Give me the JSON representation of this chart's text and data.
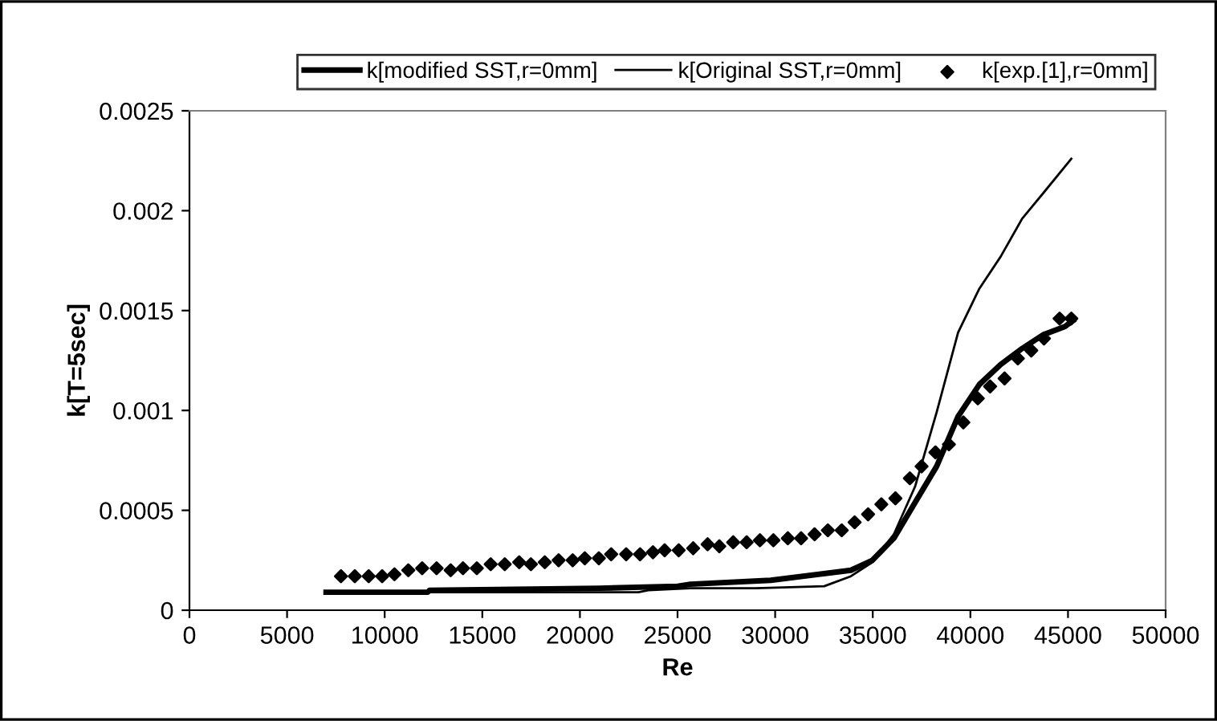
{
  "chart_data": {
    "type": "line",
    "xlabel": "Re",
    "ylabel": "k[T=5sec]",
    "xlim": [
      0,
      50000
    ],
    "ylim": [
      0,
      0.0025
    ],
    "xticks": [
      0,
      5000,
      10000,
      15000,
      20000,
      25000,
      30000,
      35000,
      40000,
      45000,
      50000
    ],
    "yticks": [
      0,
      0.0005,
      0.001,
      0.0015,
      0.002,
      0.0025
    ],
    "grid": false,
    "legend": "top",
    "series": [
      {
        "name": "k[modified SST,r=0mm]",
        "color": "#000000",
        "line_style": "solid",
        "x": [
          7000,
          12200,
          12300,
          21000,
          25000,
          25660,
          29770,
          33880,
          34980,
          36080,
          37170,
          38270,
          39370,
          40460,
          41550,
          42650,
          43750,
          44840,
          45260
        ],
        "values": [
          9e-05,
          9e-05,
          0.0001,
          0.00011,
          0.00012,
          0.00013,
          0.00015,
          0.0002,
          0.00025,
          0.00036,
          0.00054,
          0.00072,
          0.00097,
          0.00113,
          0.00123,
          0.00131,
          0.00138,
          0.00142,
          0.00145
        ]
      },
      {
        "name": "k[Original SST,r=0mm]",
        "color": "#000000",
        "line_style": "solid",
        "x": [
          7000,
          23000,
          23500,
          25660,
          29000,
          32510,
          33880,
          34980,
          36080,
          37170,
          38270,
          39370,
          40460,
          41550,
          42650,
          43750,
          45170
        ],
        "values": [
          9e-05,
          9e-05,
          0.0001,
          0.00011,
          0.00011,
          0.00012,
          0.00017,
          0.00024,
          0.00038,
          0.00062,
          0.00099,
          0.00139,
          0.00161,
          0.00177,
          0.00196,
          0.00209,
          0.00226
        ]
      },
      {
        "name": "k[exp.[1],r=0mm]",
        "color": "#000000",
        "type": "scatter",
        "marker": "diamond",
        "x": [
          7760,
          8470,
          9180,
          9870,
          10500,
          11210,
          11920,
          12660,
          13380,
          14010,
          14720,
          15430,
          16150,
          16890,
          17490,
          18200,
          18910,
          19630,
          20250,
          20970,
          21600,
          22370,
          23080,
          23740,
          24340,
          25060,
          25800,
          26540,
          27140,
          27850,
          28540,
          29220,
          29910,
          30650,
          31330,
          32020,
          32700,
          33410,
          34070,
          34760,
          35440,
          36160,
          36900,
          37500,
          38210,
          38900,
          39640,
          40380,
          41010,
          41750,
          42430,
          43120,
          43770,
          44570,
          45170
        ],
        "values": [
          0.00017,
          0.00017,
          0.00017,
          0.00017,
          0.00018,
          0.0002,
          0.00021,
          0.00021,
          0.0002,
          0.00021,
          0.00021,
          0.00023,
          0.00023,
          0.00024,
          0.00023,
          0.00024,
          0.00025,
          0.00025,
          0.00026,
          0.00026,
          0.00028,
          0.00028,
          0.00028,
          0.00029,
          0.0003,
          0.0003,
          0.00031,
          0.00033,
          0.00032,
          0.00034,
          0.00034,
          0.00035,
          0.00035,
          0.00036,
          0.00036,
          0.00038,
          0.0004,
          0.0004,
          0.00044,
          0.00048,
          0.00053,
          0.00056,
          0.00066,
          0.00072,
          0.00079,
          0.00083,
          0.00094,
          0.00106,
          0.00112,
          0.00116,
          0.00126,
          0.0013,
          0.00136,
          0.00146,
          0.00146
        ]
      }
    ]
  }
}
